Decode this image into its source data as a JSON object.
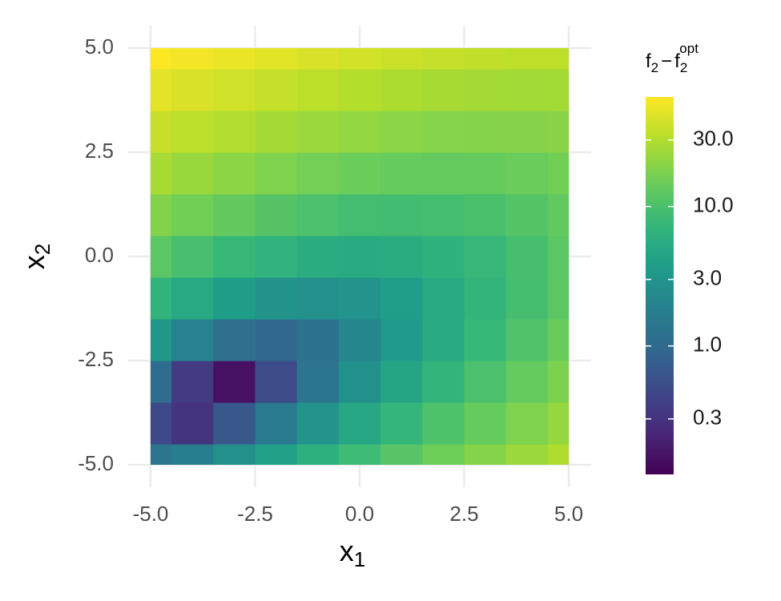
{
  "chart_data": {
    "type": "heatmap",
    "xlabel": {
      "text": "x",
      "sub": "1"
    },
    "ylabel": {
      "text": "x",
      "sub": "2"
    },
    "colorbar_title": {
      "f": "f",
      "sub1": "2",
      "op": "−",
      "f2": "f",
      "sub2": "2",
      "sup": "opt"
    },
    "colormap": "viridis",
    "color_log": true,
    "colorlim": [
      0.12,
      61
    ],
    "colorticks": [
      0.3,
      {
        "value": 1,
        "label": "1.0"
      },
      {
        "value": 3,
        "label": "3.0"
      },
      {
        "value": 10,
        "label": "10.0"
      },
      {
        "value": 30,
        "label": "30.0"
      }
    ],
    "xlim": [
      -5,
      5
    ],
    "ylim": [
      -5,
      5
    ],
    "xticks": [
      {
        "value": -5,
        "label": "-5.0"
      },
      {
        "value": -2.5,
        "label": "-2.5"
      },
      {
        "value": 0,
        "label": "0.0"
      },
      {
        "value": 2.5,
        "label": "2.5"
      },
      {
        "value": 5,
        "label": "5.0"
      }
    ],
    "yticks": [
      {
        "value": -5,
        "label": "-5.0"
      },
      {
        "value": -2.5,
        "label": "-2.5"
      },
      {
        "value": 0,
        "label": "0.0"
      },
      {
        "value": 2.5,
        "label": "2.5"
      },
      {
        "value": 5,
        "label": "5.0"
      }
    ],
    "grid": true,
    "x": [
      -5,
      -4,
      -3,
      -2,
      -1,
      0,
      1,
      2,
      3,
      4,
      5
    ],
    "y": [
      -5,
      -4,
      -3,
      -2,
      -1,
      0,
      1,
      2,
      3,
      4,
      5
    ],
    "z": [
      [
        1.39,
        1.78,
        2.69,
        4.12,
        6.08,
        8.57,
        11.58,
        15.12,
        19.18,
        23.77,
        28.89
      ],
      [
        0.48,
        0.31,
        0.67,
        1.55,
        2.96,
        4.9,
        7.36,
        10.35,
        13.86,
        17.9,
        22.46
      ],
      [
        1.08,
        0.36,
        0.16,
        0.5,
        1.35,
        2.74,
        4.65,
        7.09,
        10.05,
        13.54,
        17.55
      ],
      [
        3.19,
        1.92,
        1.18,
        0.96,
        1.27,
        2.1,
        3.46,
        5.35,
        7.76,
        10.69,
        14.16
      ],
      [
        6.82,
        5.0,
        3.7,
        2.94,
        2.69,
        2.98,
        3.78,
        5.12,
        6.98,
        9.36,
        12.28
      ],
      [
        11.97,
        9.6,
        7.75,
        6.43,
        5.64,
        5.37,
        5.63,
        6.41,
        7.72,
        9.55,
        11.92
      ],
      [
        18.63,
        15.71,
        13.31,
        11.44,
        10.09,
        9.27,
        8.98,
        9.21,
        9.97,
        11.25,
        13.07
      ],
      [
        26.81,
        23.34,
        20.39,
        17.97,
        16.07,
        14.7,
        13.86,
        13.54,
        13.75,
        14.48,
        15.74
      ],
      [
        36.51,
        32.49,
        28.99,
        26.01,
        23.57,
        21.65,
        20.25,
        19.38,
        19.04,
        19.22,
        19.93
      ],
      [
        47.72,
        43.14,
        39.09,
        35.57,
        32.57,
        30.1,
        28.15,
        26.73,
        25.84,
        25.47,
        25.63
      ],
      [
        60.44,
        55.32,
        50.72,
        46.64,
        43.09,
        40.07,
        37.57,
        35.6,
        34.15,
        33.23,
        32.84
      ]
    ]
  }
}
